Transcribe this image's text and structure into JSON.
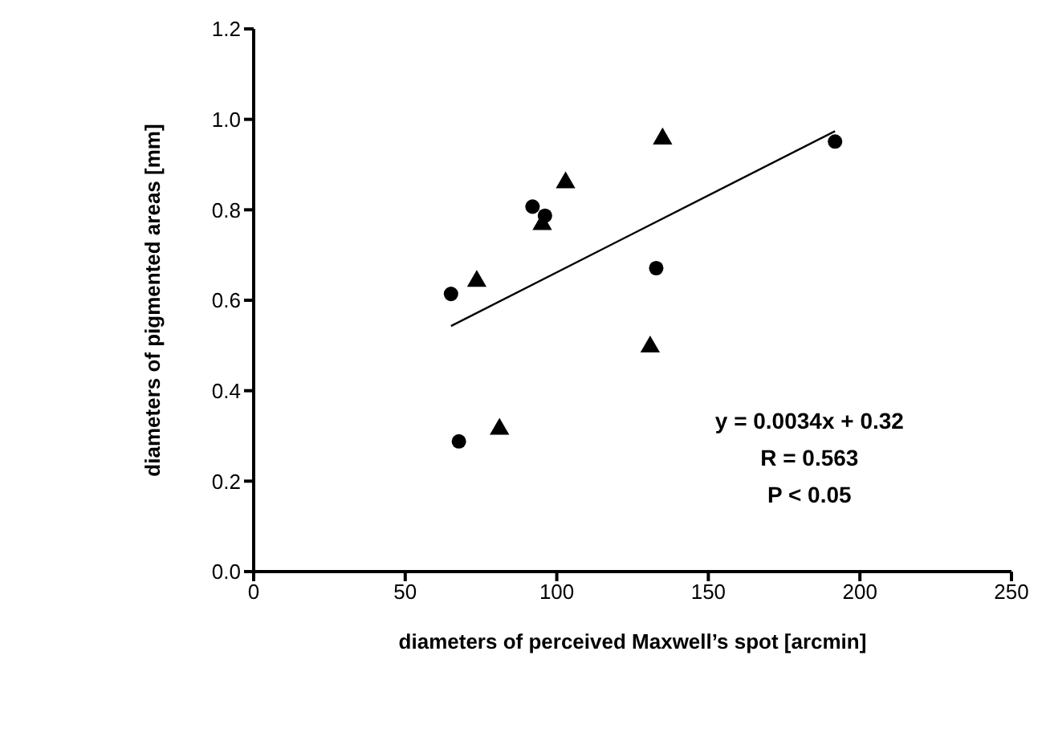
{
  "chart_data": {
    "type": "scatter",
    "xlabel": "diameters of perceived Maxwell’s spot [arcmin]",
    "ylabel": "diameters of pigmented areas [mm]",
    "xlim": [
      0,
      250
    ],
    "xticks": [
      0,
      50,
      100,
      150,
      200,
      250
    ],
    "ylim": [
      0,
      1.2
    ],
    "yticks": [
      {
        "value": 0,
        "label": "0.0"
      },
      {
        "value": 0.2,
        "label": "0.2"
      },
      {
        "value": 0.4,
        "label": "0.4"
      },
      {
        "value": 0.6,
        "label": "0.6"
      },
      {
        "value": 0.8,
        "label": "0.8"
      },
      {
        "value": 1,
        "label": "1.0"
      },
      {
        "value": 1.2,
        "label": "1.2"
      }
    ],
    "grid": false,
    "series": [
      {
        "marker": "circle",
        "color": "#000000",
        "x": [
          65.1,
          67.7,
          92.0,
          96.1,
          132.8,
          191.8
        ],
        "values": [
          0.614,
          0.288,
          0.807,
          0.787,
          0.671,
          0.951
        ]
      },
      {
        "marker": "triangle",
        "color": "#000000",
        "x": [
          73.6,
          81.1,
          95.2,
          102.9,
          134.9,
          130.8
        ],
        "values": [
          0.642,
          0.315,
          0.768,
          0.86,
          0.957,
          0.497
        ]
      },
      {
        "type": "line",
        "marker": "none",
        "line_style": "solid",
        "color": "#000000",
        "x": [
          65.1,
          191.8
        ],
        "values": [
          0.543,
          0.974
        ]
      }
    ],
    "annotations": [
      "y = 0.0034x + 0.32",
      "R = 0.563",
      "P < 0.05"
    ]
  }
}
